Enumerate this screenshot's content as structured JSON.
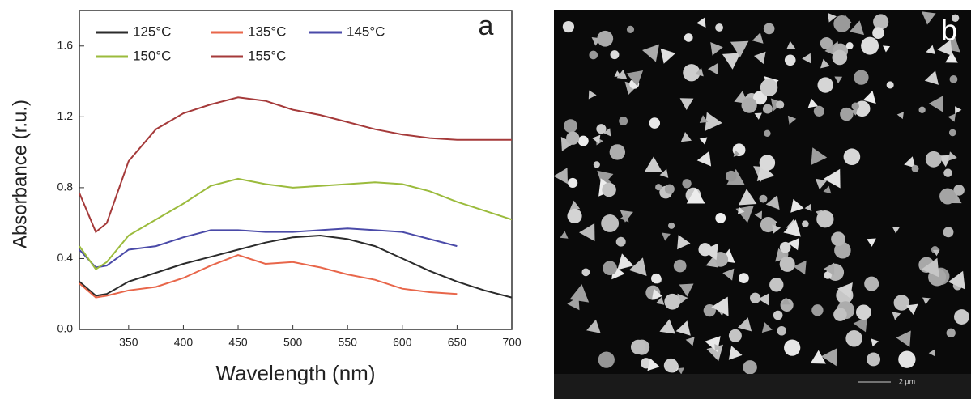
{
  "chart_data": {
    "type": "line",
    "xlabel": "Wavelength (nm)",
    "ylabel": "Absorbance (r.u.)",
    "panel_label": "a",
    "x": [
      305,
      320,
      330,
      350,
      375,
      400,
      425,
      450,
      475,
      500,
      525,
      550,
      575,
      600,
      625,
      650,
      675,
      700
    ],
    "xlim": [
      305,
      700
    ],
    "xticks": [
      350,
      400,
      450,
      500,
      550,
      600,
      650,
      700
    ],
    "ylim": [
      0,
      1.8
    ],
    "yticks": [
      {
        "value": 0,
        "label": "0.0"
      },
      0.4,
      0.8,
      1.2,
      1.6
    ],
    "series": [
      {
        "name": "125°C",
        "color": "#2b2b2b",
        "values": [
          0.27,
          0.19,
          0.2,
          0.27,
          0.32,
          0.37,
          0.41,
          0.45,
          0.49,
          0.52,
          0.53,
          0.51,
          0.47,
          0.4,
          0.33,
          0.27,
          0.22,
          0.18
        ]
      },
      {
        "name": "135°C",
        "color": "#e8664a",
        "values": [
          0.26,
          0.18,
          0.19,
          0.22,
          0.24,
          0.29,
          0.36,
          0.42,
          0.37,
          0.38,
          0.35,
          0.31,
          0.28,
          0.23,
          0.21,
          0.2,
          null,
          null
        ]
      },
      {
        "name": "145°C",
        "color": "#4a4aa8",
        "values": [
          0.45,
          0.35,
          0.36,
          0.45,
          0.47,
          0.52,
          0.56,
          0.56,
          0.55,
          0.55,
          0.56,
          0.57,
          0.56,
          0.55,
          0.51,
          0.47,
          null,
          null
        ]
      },
      {
        "name": "150°C",
        "color": "#9bbb3c",
        "values": [
          0.47,
          0.34,
          0.38,
          0.53,
          0.62,
          0.71,
          0.81,
          0.85,
          0.82,
          0.8,
          0.81,
          0.82,
          0.83,
          0.82,
          0.78,
          0.72,
          0.67,
          0.62
        ]
      },
      {
        "name": "155°C",
        "color": "#a53a3a",
        "values": [
          0.77,
          0.55,
          0.6,
          0.95,
          1.13,
          1.22,
          1.27,
          1.31,
          1.29,
          1.24,
          1.21,
          1.17,
          1.13,
          1.1,
          1.08,
          1.07,
          1.07,
          1.07
        ]
      }
    ]
  },
  "image_panel": {
    "label": "b",
    "scale_bar": "2 µm"
  }
}
